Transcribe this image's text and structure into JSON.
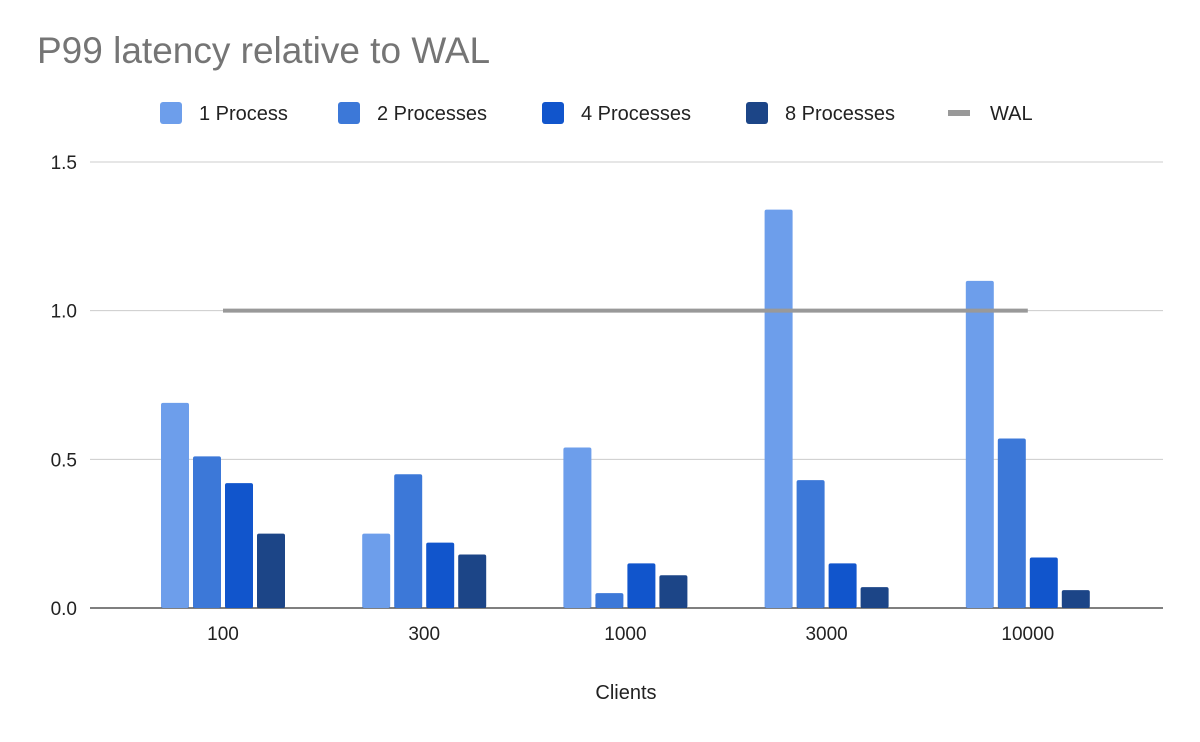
{
  "chart_data": {
    "type": "bar",
    "title": "P99 latency relative to WAL",
    "xlabel": "Clients",
    "ylabel": "",
    "categories": [
      "100",
      "300",
      "1000",
      "3000",
      "10000"
    ],
    "ylim": [
      0,
      1.5
    ],
    "yticks": [
      "0.0",
      "0.5",
      "1.0",
      "1.5"
    ],
    "ytick_values": [
      0,
      0.5,
      1.0,
      1.5
    ],
    "grid": true,
    "legend_position": "top",
    "series": [
      {
        "name": "1 Process",
        "color": "#6d9eeb",
        "values": [
          0.69,
          0.25,
          0.54,
          1.34,
          1.1
        ]
      },
      {
        "name": "2 Processes",
        "color": "#3c78d8",
        "values": [
          0.51,
          0.45,
          0.05,
          0.43,
          0.57
        ]
      },
      {
        "name": "4 Processes",
        "color": "#1155cc",
        "values": [
          0.42,
          0.22,
          0.15,
          0.15,
          0.17
        ]
      },
      {
        "name": "8 Processes",
        "color": "#1c4587",
        "values": [
          0.25,
          0.18,
          0.11,
          0.07,
          0.06
        ]
      }
    ],
    "line_series": {
      "name": "WAL",
      "color": "#999999",
      "type": "line",
      "values": [
        1.0,
        1.0,
        1.0,
        1.0,
        1.0
      ]
    }
  }
}
